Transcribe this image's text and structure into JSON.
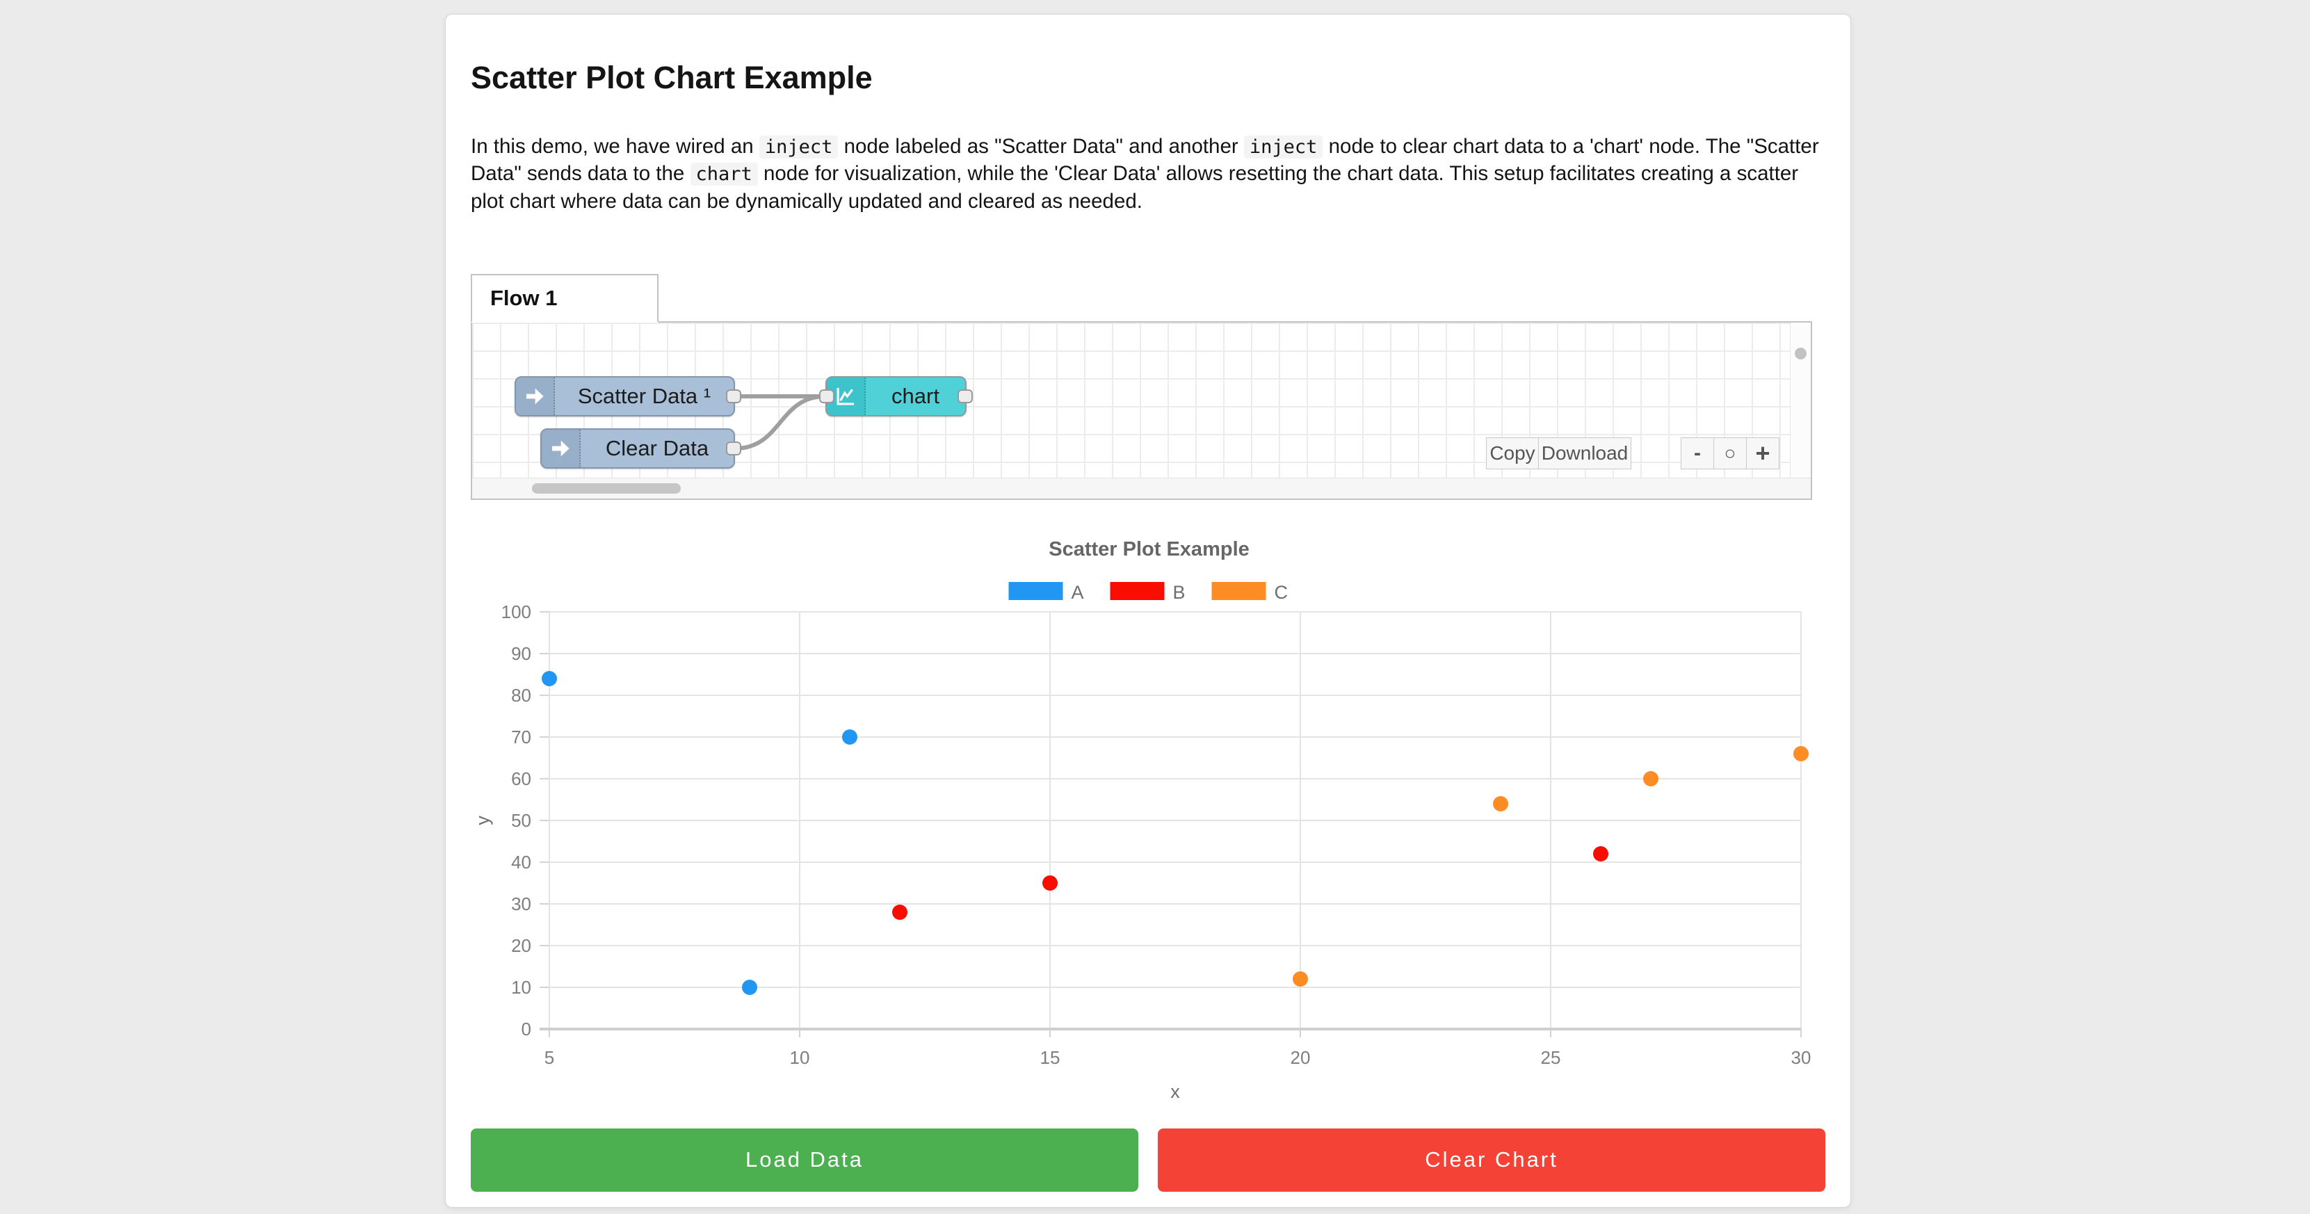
{
  "page": {
    "title": "Scatter Plot Chart Example"
  },
  "description": {
    "segments": [
      {
        "code": false,
        "text": "In this demo, we have wired an "
      },
      {
        "code": true,
        "text": "inject"
      },
      {
        "code": false,
        "text": " node labeled as \"Scatter Data\" and another "
      },
      {
        "code": true,
        "text": "inject"
      },
      {
        "code": false,
        "text": " node to clear chart data to a 'chart' node. The \"Scatter Data\" sends data to the "
      },
      {
        "code": true,
        "text": "chart"
      },
      {
        "code": false,
        "text": " node for visualization, while the 'Clear Data' allows resetting the chart data. This setup facilitates creating a scatter plot chart where data can be dynamically updated and cleared as needed."
      }
    ]
  },
  "flow": {
    "tab_label": "Flow 1",
    "nodes": [
      {
        "label": "Scatter Data ¹",
        "type": "inject"
      },
      {
        "label": "Clear Data",
        "type": "inject"
      },
      {
        "label": "chart",
        "type": "chart"
      }
    ],
    "toolbar": {
      "copy_label": "Copy",
      "download_label": "Download",
      "zoom_out_label": "-",
      "zoom_reset_label": "○",
      "zoom_in_label": "+"
    }
  },
  "chart_data": {
    "type": "scatter",
    "title": "Scatter Plot Example",
    "xlabel": "x",
    "ylabel": "y",
    "xlim": [
      5,
      30
    ],
    "ylim": [
      0,
      100
    ],
    "x_ticks": [
      5,
      10,
      15,
      20,
      25,
      30
    ],
    "y_ticks": [
      0,
      10,
      20,
      30,
      40,
      50,
      60,
      70,
      80,
      90,
      100
    ],
    "grid": true,
    "legend_position": "top",
    "series": [
      {
        "name": "A",
        "color": "#2196f3",
        "points": [
          [
            5,
            84
          ],
          [
            9,
            10
          ],
          [
            11,
            70
          ]
        ]
      },
      {
        "name": "B",
        "color": "#f90d00",
        "points": [
          [
            12,
            28
          ],
          [
            15,
            35
          ],
          [
            26,
            42
          ]
        ]
      },
      {
        "name": "C",
        "color": "#fd8c25",
        "points": [
          [
            20,
            12
          ],
          [
            24,
            54
          ],
          [
            27,
            60
          ],
          [
            30,
            66
          ]
        ]
      }
    ]
  },
  "actions": {
    "load_button": {
      "label": "Load Data",
      "color": "#4caf50"
    },
    "clear_button": {
      "label": "Clear Chart",
      "color": "#f44336"
    }
  }
}
